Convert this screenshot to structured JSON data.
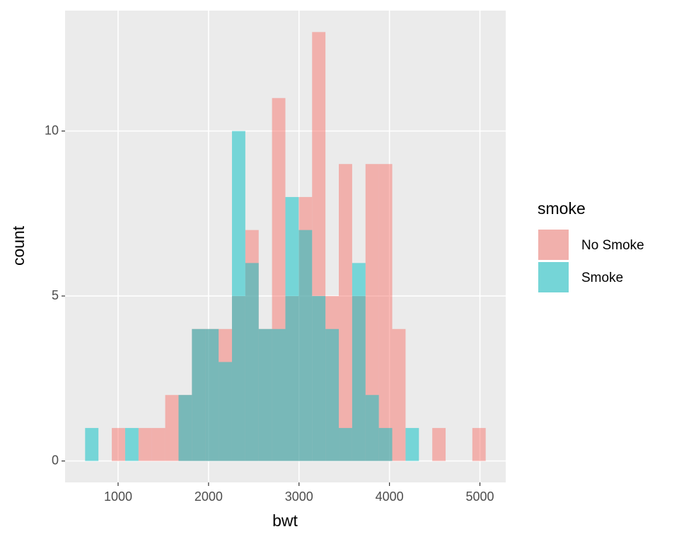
{
  "chart_data": {
    "type": "histogram",
    "x_label": "bwt",
    "y_label": "count",
    "legend_title": "smoke",
    "bins": [
      635.2,
      782.8,
      930.4,
      1078.1,
      1225.7,
      1373.3,
      1520.9,
      1668.5,
      1816.2,
      1963.8,
      2111.4,
      2259.0,
      2406.6,
      2554.3,
      2701.9,
      2849.5,
      2997.1,
      3144.7,
      3292.4,
      3440.0,
      3587.6,
      3735.2,
      3882.8,
      4030.5,
      4178.1,
      4325.7,
      4473.3,
      4620.9,
      4768.6,
      4916.2,
      5063.8
    ],
    "series": [
      {
        "name": "No Smoke",
        "color": "#F8766D",
        "values": [
          0,
          0,
          1,
          0,
          1,
          1,
          2,
          2,
          4,
          4,
          4,
          5,
          7,
          4,
          11,
          5,
          8,
          13,
          5,
          9,
          5,
          9,
          9,
          4,
          0,
          0,
          1,
          0,
          0,
          1
        ]
      },
      {
        "name": "Smoke",
        "color": "#00BFC4",
        "values": [
          1,
          0,
          0,
          1,
          0,
          0,
          0,
          2,
          4,
          4,
          3,
          10,
          6,
          4,
          4,
          8,
          7,
          5,
          4,
          1,
          6,
          2,
          1,
          0,
          1,
          0,
          0,
          0,
          0,
          0
        ]
      }
    ],
    "opacity": 0.5,
    "xlim": [
      413.8,
      5285.2
    ],
    "xticks": [
      1000,
      2000,
      3000,
      4000,
      5000
    ],
    "ylim": [
      -0.65,
      13.65
    ],
    "yticks": [
      0,
      5,
      10
    ],
    "grid": true,
    "legend_position": "right"
  }
}
